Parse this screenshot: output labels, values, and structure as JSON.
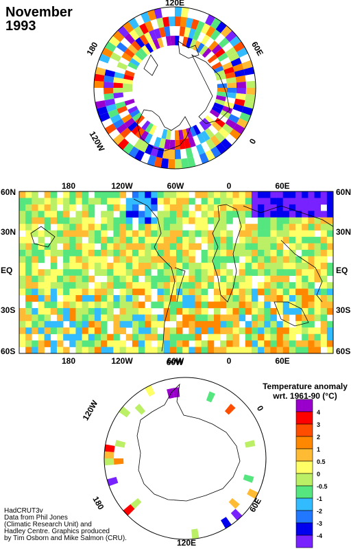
{
  "title": {
    "month": "November",
    "year": "1993"
  },
  "north_polar": {
    "labels": [
      "120E",
      "60E",
      "0",
      "120W",
      "180"
    ]
  },
  "main_map": {
    "top_labels": [
      "180",
      "120W",
      "60W",
      "0",
      "60E"
    ],
    "bottom_labels": [
      "180",
      "120W",
      "60W",
      "0",
      "60E"
    ],
    "left_labels": [
      "60N",
      "30N",
      "EQ",
      "30S",
      "60S"
    ],
    "right_labels": [
      "60N",
      "30N",
      "EQ",
      "30S",
      "60S"
    ]
  },
  "south_polar": {
    "labels": [
      "120W",
      "60W",
      "0",
      "60E",
      "120E",
      "180"
    ]
  },
  "legend": {
    "title_line1": "Temperature anomaly",
    "title_line2": "wrt. 1961-90  (°C)",
    "levels": [
      {
        "label": "4",
        "color": "#9900cc"
      },
      {
        "label": "3",
        "color": "#ff0000"
      },
      {
        "label": "2",
        "color": "#ff4d00"
      },
      {
        "label": "1",
        "color": "#ff8800"
      },
      {
        "label": "0.5",
        "color": "#ffbb33"
      },
      {
        "label": "0",
        "color": "#ffff66"
      },
      {
        "label": "-0.5",
        "color": "#bbf066"
      },
      {
        "label": "-1",
        "color": "#55e67f"
      },
      {
        "label": "-2",
        "color": "#33bbff"
      },
      {
        "label": "-3",
        "color": "#2277ff"
      },
      {
        "label": "-4",
        "color": "#0000ee"
      },
      {
        "label": "",
        "color": "#7722ff"
      }
    ]
  },
  "credits": {
    "line1": "HadCRUT3v",
    "line2": "Data from Phil Jones",
    "line3": "(Climatic Research Unit) and",
    "line4": "Hadley Centre.  Graphics produced",
    "line5": "by Tim Osborn and Mike Salmon (CRU)."
  }
}
